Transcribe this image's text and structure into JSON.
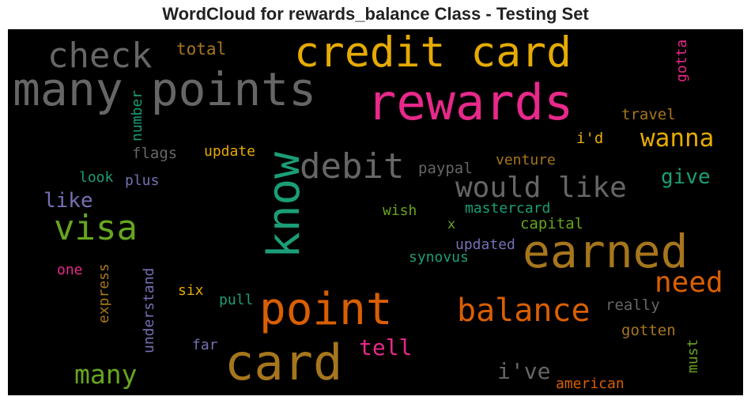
{
  "title": "WordCloud for rewards_balance Class - Testing Set",
  "colors": {
    "gold": "#e6ab02",
    "pink": "#e7298a",
    "gray": "#666666",
    "brown": "#a6761d",
    "teal": "#1b9e77",
    "orange": "#d95f02",
    "green": "#66a61e",
    "purple": "#7570b3",
    "background": "#000000"
  },
  "words": [
    {
      "id": "many-points",
      "text": "many points",
      "color": "gray"
    },
    {
      "id": "credit-card",
      "text": "credit card",
      "color": "gold"
    },
    {
      "id": "rewards",
      "text": "rewards",
      "color": "pink"
    },
    {
      "id": "check",
      "text": "check",
      "color": "gray"
    },
    {
      "id": "total",
      "text": "total",
      "color": "brown"
    },
    {
      "id": "gotta",
      "text": "gotta",
      "color": "pink"
    },
    {
      "id": "number",
      "text": "number",
      "color": "teal"
    },
    {
      "id": "travel",
      "text": "travel",
      "color": "brown"
    },
    {
      "id": "know",
      "text": "know",
      "color": "teal"
    },
    {
      "id": "debit",
      "text": "debit",
      "color": "gray"
    },
    {
      "id": "i-d",
      "text": "i'd",
      "color": "gold"
    },
    {
      "id": "wanna",
      "text": "wanna",
      "color": "gold"
    },
    {
      "id": "flags",
      "text": "flags",
      "color": "gray"
    },
    {
      "id": "update",
      "text": "update",
      "color": "gold"
    },
    {
      "id": "paypal",
      "text": "paypal",
      "color": "gray"
    },
    {
      "id": "venture",
      "text": "venture",
      "color": "brown"
    },
    {
      "id": "would-like",
      "text": "would like",
      "color": "gray"
    },
    {
      "id": "give",
      "text": "give",
      "color": "teal"
    },
    {
      "id": "look",
      "text": "look",
      "color": "teal"
    },
    {
      "id": "plus",
      "text": "plus",
      "color": "purple"
    },
    {
      "id": "like",
      "text": "like",
      "color": "purple"
    },
    {
      "id": "wish",
      "text": "wish",
      "color": "green"
    },
    {
      "id": "mastercard",
      "text": "mastercard",
      "color": "teal"
    },
    {
      "id": "visa",
      "text": "visa",
      "color": "green"
    },
    {
      "id": "x",
      "text": "x",
      "color": "green"
    },
    {
      "id": "capital",
      "text": "capital",
      "color": "green"
    },
    {
      "id": "earned",
      "text": "earned",
      "color": "brown"
    },
    {
      "id": "updated",
      "text": "updated",
      "color": "purple"
    },
    {
      "id": "synovus",
      "text": "synovus",
      "color": "teal"
    },
    {
      "id": "one",
      "text": "one",
      "color": "pink"
    },
    {
      "id": "express",
      "text": "express",
      "color": "brown"
    },
    {
      "id": "understand",
      "text": "understand",
      "color": "purple"
    },
    {
      "id": "six",
      "text": "six",
      "color": "gold"
    },
    {
      "id": "pull",
      "text": "pull",
      "color": "teal"
    },
    {
      "id": "need",
      "text": "need",
      "color": "orange"
    },
    {
      "id": "point",
      "text": "point",
      "color": "orange"
    },
    {
      "id": "balance",
      "text": "balance",
      "color": "orange"
    },
    {
      "id": "really",
      "text": "really",
      "color": "gray"
    },
    {
      "id": "gotten",
      "text": "gotten",
      "color": "brown"
    },
    {
      "id": "far",
      "text": "far",
      "color": "purple"
    },
    {
      "id": "tell",
      "text": "tell",
      "color": "pink"
    },
    {
      "id": "must",
      "text": "must",
      "color": "green"
    },
    {
      "id": "card",
      "text": "card",
      "color": "brown"
    },
    {
      "id": "many",
      "text": "many",
      "color": "green"
    },
    {
      "id": "i-ve",
      "text": "i've",
      "color": "gray"
    },
    {
      "id": "american",
      "text": "american",
      "color": "orange"
    }
  ]
}
